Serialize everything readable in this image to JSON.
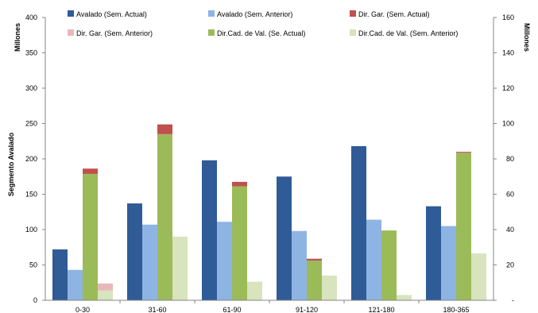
{
  "chart_data": {
    "type": "bar",
    "categories": [
      "0-30",
      "31-60",
      "61-90",
      "91-120",
      "121-180",
      "180-365"
    ],
    "ylabel_left": "Segmento Avalado",
    "unit_left": "Millones",
    "unit_right": "Millones",
    "ylim_left": [
      0,
      400
    ],
    "ylim_right": [
      0,
      160
    ],
    "yticks_left": [
      "0",
      "50",
      "100",
      "150",
      "200",
      "250",
      "300",
      "350",
      "400"
    ],
    "yticks_right": [
      "-",
      "20",
      "40",
      "60",
      "80",
      "100",
      "120",
      "140",
      "160"
    ],
    "legend_position": "top",
    "grid": false,
    "series": [
      {
        "name": "Avalado (Sem. Actual)",
        "axis": "left",
        "color": "#2f5b97",
        "values": [
          72,
          137,
          198,
          175,
          218,
          133
        ]
      },
      {
        "name": "Avalado (Sem. Anterior)",
        "axis": "left",
        "color": "#8eb4e3",
        "values": [
          43,
          107,
          111,
          98,
          114,
          105
        ]
      }
    ],
    "stacked_series": [
      {
        "base": "Dir.Cad. de Val. (Se. Actual)",
        "top": "Dir. Gar. (Sem. Actual)",
        "axis": "right",
        "base_color": "#9bbb59",
        "top_color": "#c0504d",
        "base_values": [
          71.5,
          94,
          64.5,
          22.5,
          39.5,
          83.5
        ],
        "top_values": [
          3,
          5.5,
          2.5,
          1,
          0,
          0.5
        ]
      },
      {
        "base": "Dir.Cad. de Val. (Sem. Anterior)",
        "top": "Dir. Gar. (Sem. Anterior)",
        "axis": "right",
        "base_color": "#d7e4bd",
        "top_color": "#e6b9b8",
        "base_values": [
          5.5,
          36,
          10.5,
          14,
          3,
          26.5
        ],
        "top_values": [
          4,
          0,
          0,
          0,
          0,
          0
        ]
      }
    ],
    "legend": [
      {
        "label": "Avalado (Sem. Actual)",
        "color": "#2f5b97"
      },
      {
        "label": "Avalado (Sem. Anterior)",
        "color": "#8eb4e3"
      },
      {
        "label": "Dir. Gar. (Sem. Actual)",
        "color": "#c0504d"
      },
      {
        "label": "Dir. Gar. (Sem. Anterior)",
        "color": "#e6b9b8"
      },
      {
        "label": "Dir.Cad. de Val. (Se. Actual)",
        "color": "#9bbb59"
      },
      {
        "label": "Dir.Cad. de Val. (Sem. Anterior)",
        "color": "#d7e4bd"
      }
    ]
  }
}
